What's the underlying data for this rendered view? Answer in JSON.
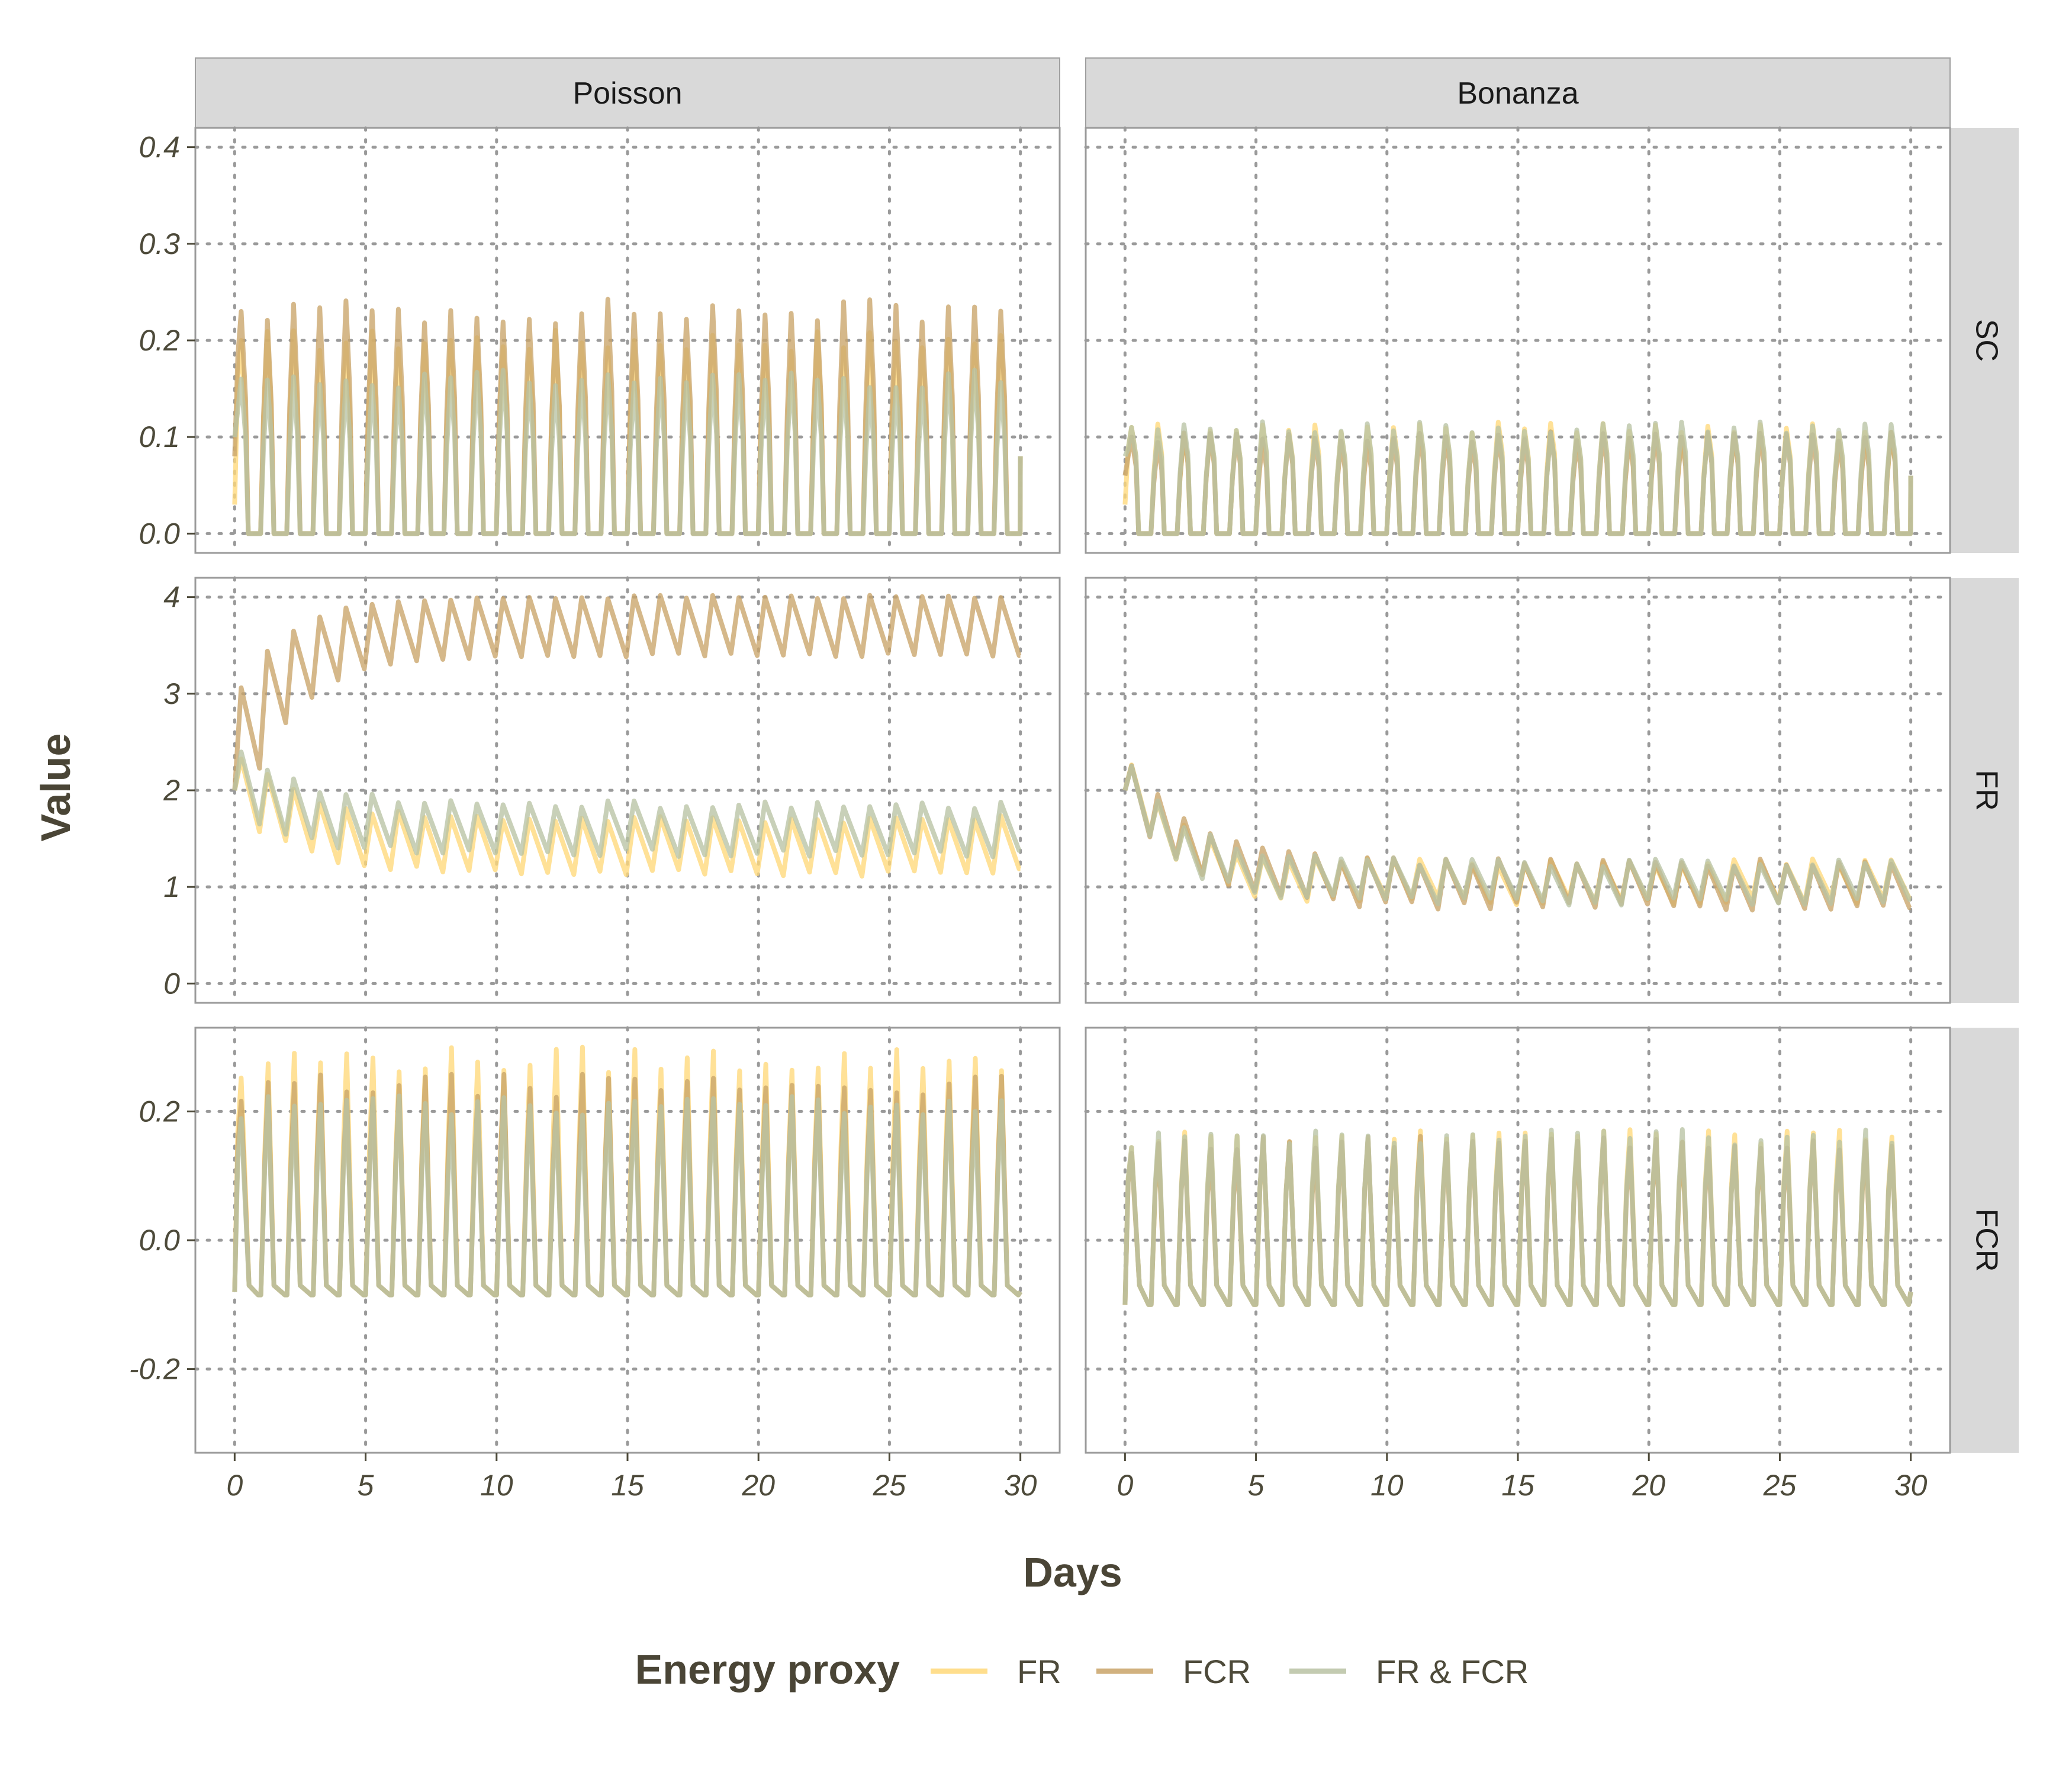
{
  "chart_data": {
    "type": "line",
    "xlabel": "Days",
    "ylabel": "Value",
    "legend_title": "Energy proxy",
    "legend_position": "bottom",
    "grid": "dotted",
    "columns": [
      "Poisson",
      "Bonanza"
    ],
    "rows": [
      "SC",
      "FR",
      "FCR"
    ],
    "x_ticks": [
      0,
      5,
      10,
      15,
      20,
      25,
      30
    ],
    "xlim": [
      -1.5,
      31.5
    ],
    "series": [
      {
        "name": "FR",
        "color": "#FFD97A"
      },
      {
        "name": "FCR",
        "color": "#C9A469"
      },
      {
        "name": "FR & FCR",
        "color": "#B9C3A4"
      }
    ],
    "row_axes": {
      "SC": {
        "ylim": [
          -0.02,
          0.42
        ],
        "ticks": [
          0.0,
          0.1,
          0.2,
          0.3,
          0.4
        ],
        "tick_labels": [
          "0.0",
          "0.1",
          "0.2",
          "0.3",
          "0.4"
        ]
      },
      "FR": {
        "ylim": [
          -0.2,
          4.2
        ],
        "ticks": [
          0,
          1,
          2,
          3,
          4
        ],
        "tick_labels": [
          "0",
          "1",
          "2",
          "3",
          "4"
        ]
      },
      "FCR": {
        "ylim": [
          -0.33,
          0.33
        ],
        "ticks": [
          -0.2,
          0.0,
          0.2
        ],
        "tick_labels": [
          "-0.2",
          "0.0",
          "0.2"
        ]
      }
    },
    "panels": {
      "Poisson": {
        "SC": {
          "period_days": 1,
          "peak_day": 0.25,
          "base": 0.0,
          "first_point": {
            "FR": 0.03,
            "FCR": 0.08,
            "FR & FCR": 0.1
          },
          "peak": {
            "FR": 0.2,
            "FCR": 0.23,
            "FR & FCR": 0.16
          },
          "secondary_peak": {
            "FR": 0.12,
            "FCR": 0.14,
            "FR & FCR": 0.1
          },
          "last": {
            "day": 30,
            "value": 0.08
          }
        },
        "FR": {
          "start": 2.0,
          "FR": {
            "steady_high": 1.7,
            "steady_low": 1.15,
            "tau_days": 2.5
          },
          "FCR": {
            "steady_high": 4.0,
            "steady_low": 3.4,
            "tau_days": 2.0
          },
          "FR & FCR": {
            "steady_high": 1.85,
            "steady_low": 1.35,
            "tau_days": 2.5
          }
        },
        "FCR": {
          "base": -0.07,
          "dip": -0.085,
          "peak": {
            "FR": 0.28,
            "FCR": 0.24,
            "FR & FCR": 0.21
          },
          "start": -0.08,
          "end": -0.08
        }
      },
      "Bonanza": {
        "SC": {
          "period_days": 1,
          "peak_day": 0.25,
          "base": 0.0,
          "first_point": {
            "FR": 0.03,
            "FCR": 0.06,
            "FR & FCR": 0.08
          },
          "peak": {
            "FR": 0.11,
            "FCR": 0.1,
            "FR & FCR": 0.11
          },
          "secondary_peak": {
            "FR": 0.08,
            "FCR": 0.07,
            "FR & FCR": 0.08
          },
          "last": {
            "day": 30,
            "value": 0.06
          }
        },
        "FR": {
          "start": 2.0,
          "FR": {
            "steady_high": 1.25,
            "steady_low": 0.85,
            "tau_days": 2.0
          },
          "FCR": {
            "steady_high": 1.25,
            "steady_low": 0.8,
            "tau_days": 2.5
          },
          "FR & FCR": {
            "steady_high": 1.25,
            "steady_low": 0.85,
            "tau_days": 2.2
          }
        },
        "FCR": {
          "base": -0.07,
          "dip": -0.1,
          "peak": {
            "FR": 0.16,
            "FCR": 0.15,
            "FR & FCR": 0.16
          },
          "start": -0.1,
          "end": -0.08
        }
      }
    }
  }
}
